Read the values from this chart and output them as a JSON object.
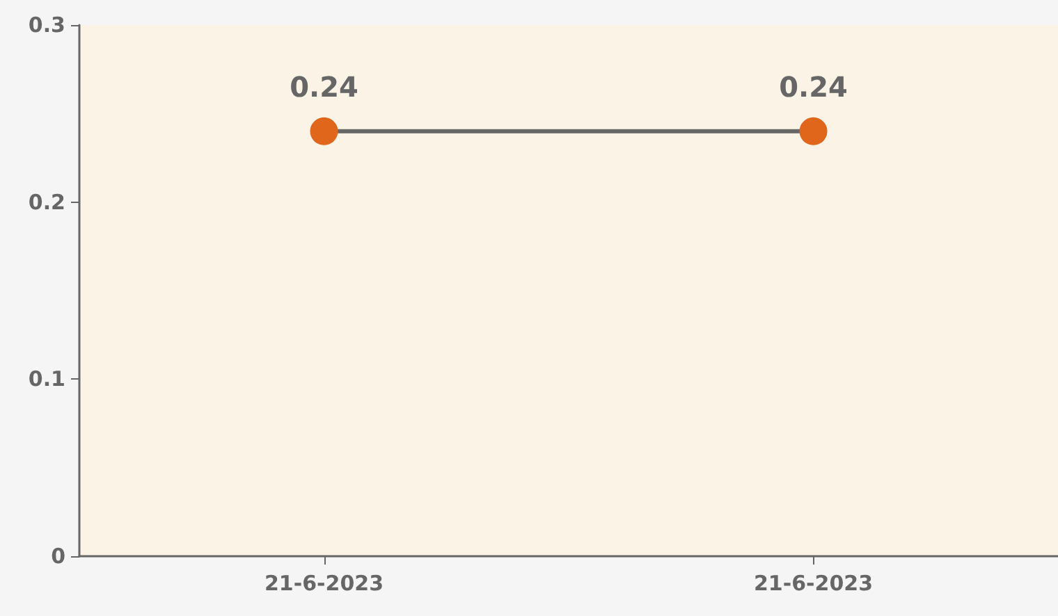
{
  "chart_data": {
    "type": "line",
    "categories": [
      "21-6-2023",
      "21-6-2023"
    ],
    "series": [
      {
        "color": "#e0661c",
        "values": [
          0.24,
          0.24
        ]
      }
    ],
    "ylim": [
      0,
      0.3
    ],
    "yticks": [
      0,
      0.1,
      0.2,
      0.3
    ],
    "grid": false,
    "marker": "circle",
    "data_labels": true
  }
}
